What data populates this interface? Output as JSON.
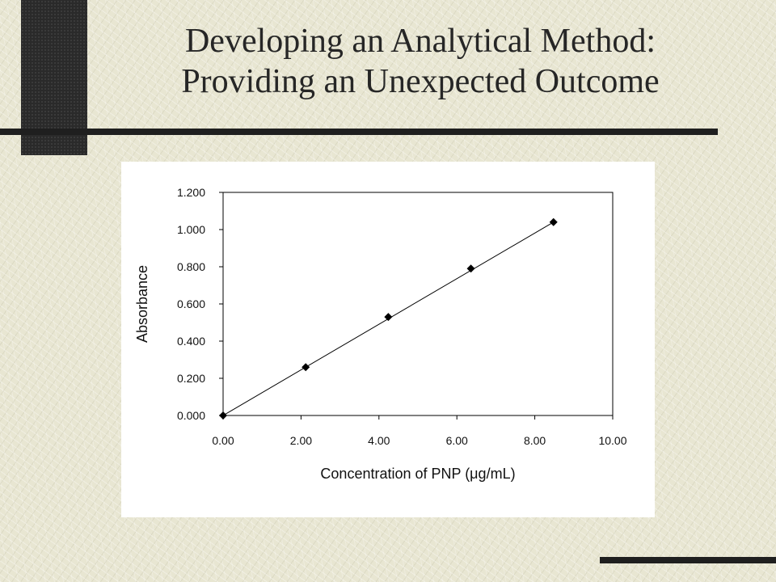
{
  "slide": {
    "title_line1": "Developing an Analytical Method:",
    "title_line2": "Providing an Unexpected Outcome"
  },
  "chart_data": {
    "type": "scatter",
    "title": "",
    "xlabel": "Concentration of PNP (μg/mL)",
    "ylabel": "Absorbance",
    "xlim": [
      0,
      10
    ],
    "ylim": [
      0,
      1.2
    ],
    "x_ticks": [
      "0.00",
      "2.00",
      "4.00",
      "6.00",
      "8.00",
      "10.00"
    ],
    "y_ticks": [
      "0.000",
      "0.200",
      "0.400",
      "0.600",
      "0.800",
      "1.000",
      "1.200"
    ],
    "grid": false,
    "legend": "none",
    "marker": "diamond",
    "color": "#000000",
    "series": [
      {
        "x": [
          0.0,
          2.12,
          4.24,
          6.36,
          8.48
        ],
        "y": [
          0.0,
          0.26,
          0.53,
          0.79,
          1.04
        ]
      }
    ],
    "trendline": {
      "type": "linear",
      "x": [
        0.0,
        8.48
      ],
      "y": [
        0.0,
        1.04
      ]
    }
  }
}
